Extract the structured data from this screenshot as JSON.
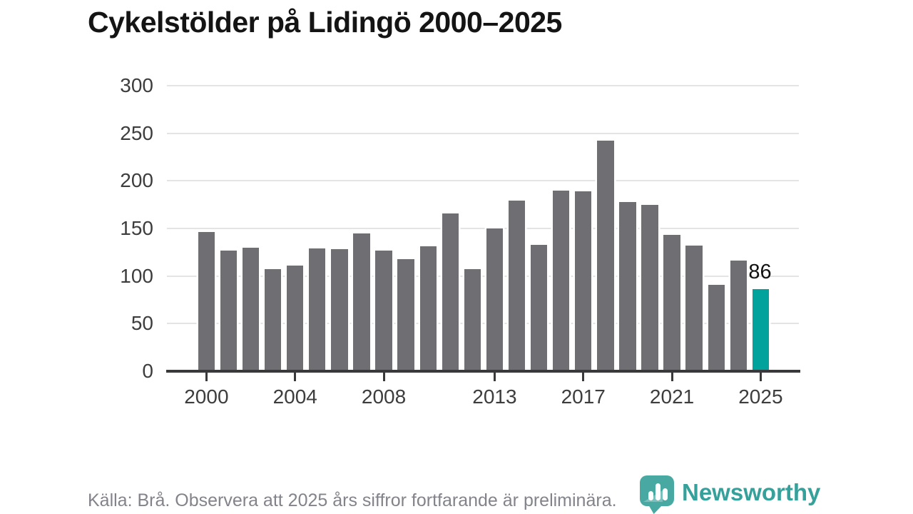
{
  "header": {
    "title": "Cykelstölder på Lidingö 2000–2025"
  },
  "chart_data": {
    "type": "bar",
    "title": "Cykelstölder på Lidingö 2000–2025",
    "categories": [
      2000,
      2001,
      2002,
      2003,
      2004,
      2005,
      2006,
      2007,
      2008,
      2009,
      2010,
      2011,
      2012,
      2013,
      2014,
      2015,
      2016,
      2017,
      2018,
      2019,
      2020,
      2021,
      2022,
      2023,
      2024,
      2025
    ],
    "values": [
      146,
      127,
      130,
      107,
      111,
      129,
      128,
      145,
      127,
      118,
      131,
      166,
      107,
      150,
      179,
      133,
      190,
      189,
      242,
      178,
      175,
      143,
      132,
      91,
      116,
      86
    ],
    "highlight_year": 2025,
    "highlight_label": "86",
    "y_ticks": [
      0,
      50,
      100,
      150,
      200,
      250,
      300
    ],
    "x_tick_labels": [
      2000,
      2004,
      2008,
      2013,
      2017,
      2021,
      2025
    ],
    "ylim": [
      0,
      300
    ],
    "grid": "horizontal",
    "legend": "none",
    "colors": {
      "bar_default": "#6e6e73",
      "bar_highlight": "#00a29b",
      "gridline": "#e4e4e4",
      "axis": "#39393b",
      "tick_label": "#3d3d3d",
      "annotation": "#111111"
    }
  },
  "footer": {
    "source_note": "Källa: Brå. Observera att 2025 års siffror fortfarande är preliminära.",
    "brand": "Newsworthy",
    "brand_color": "#36a09a",
    "logo_icon": "newsworthy-speech-bubble-chart-icon"
  }
}
